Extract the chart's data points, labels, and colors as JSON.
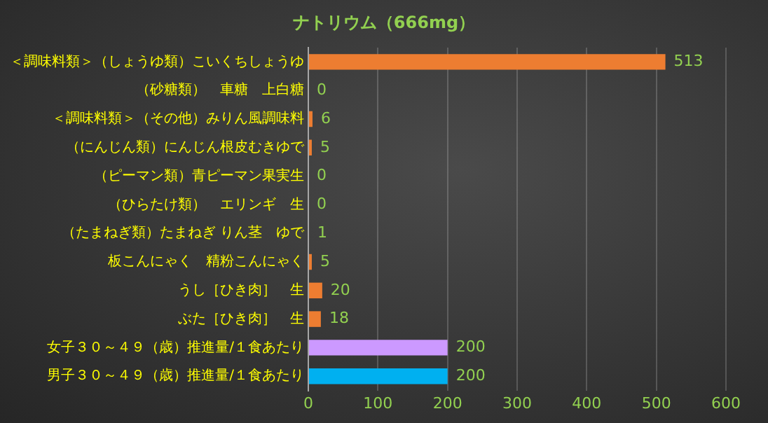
{
  "chart_data": {
    "type": "bar",
    "orientation": "horizontal",
    "title": "ナトリウム（666mg）",
    "categories": [
      "＜調味料類＞（しょうゆ類）こいくちしょうゆ",
      "（砂糖類）　車糖　上白糖",
      "＜調味料類＞（その他）みりん風調味料",
      "（にんじん類）にんじん根皮むきゆで",
      "（ピーマン類）青ピーマン果実生",
      "（ひらたけ類）　エリンギ　生",
      "（たまねぎ類）たまねぎ りん茎　ゆで",
      "板こんにゃく　精粉こんにゃく",
      "うし［ひき肉］　生",
      "ぶた［ひき肉］　生",
      "女子３０～４９（歳）推進量/１食あたり",
      "男子３０～４９（歳）推進量/１食あたり"
    ],
    "values": [
      513,
      0,
      6,
      5,
      0,
      0,
      1,
      5,
      20,
      18,
      200,
      200
    ],
    "colors": [
      "#ed7d31",
      "#ed7d31",
      "#ed7d31",
      "#ed7d31",
      "#ed7d31",
      "#ed7d31",
      "#ed7d31",
      "#ed7d31",
      "#ed7d31",
      "#ed7d31",
      "#cc99ff",
      "#00b0f0"
    ],
    "xlim": [
      0,
      600
    ],
    "xticks": [
      0,
      100,
      200,
      300,
      400,
      500,
      600
    ],
    "grid": "x",
    "data_labels": true,
    "legend": false
  }
}
